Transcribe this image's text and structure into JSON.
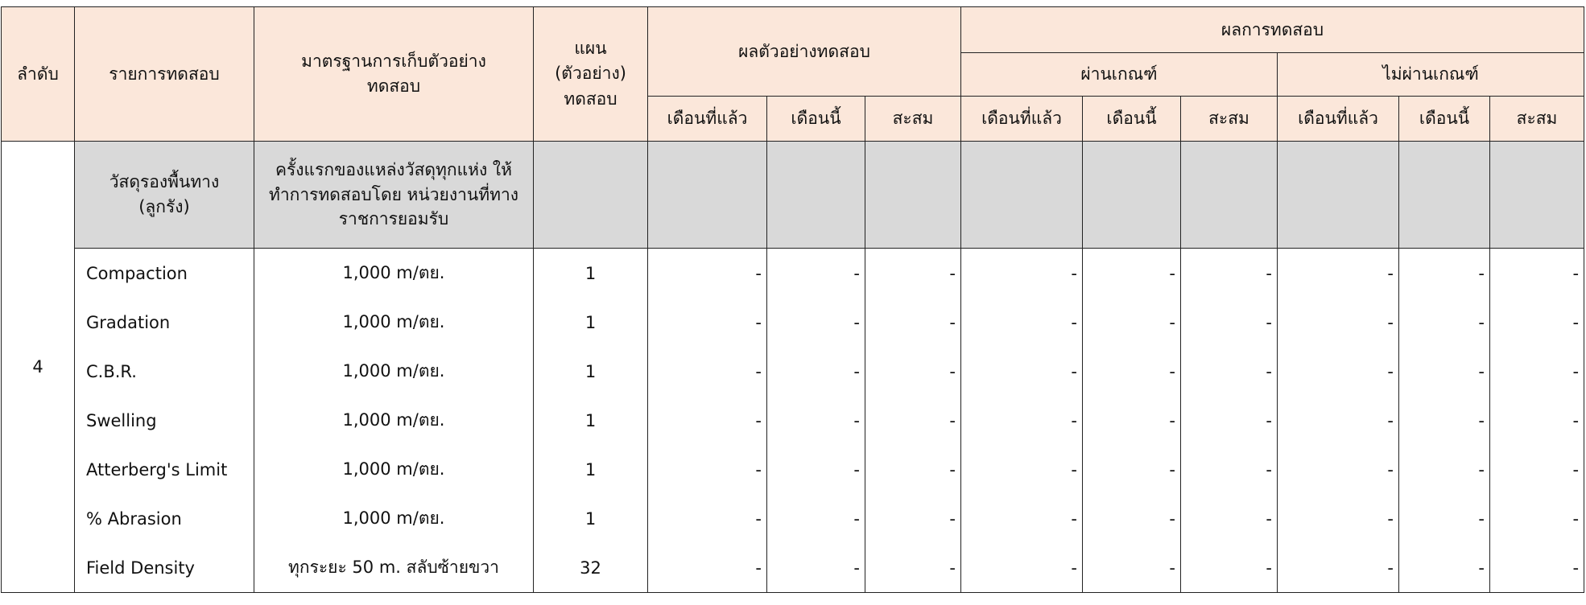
{
  "headers": {
    "seq": "ลำดับ",
    "test_item": "รายการทดสอบ",
    "standard": "มาตรฐานการเก็บตัวอย่างทดสอบ",
    "plan": "แผน (ตัวอย่าง) ทดสอบ",
    "sample_result": "ผลตัวอย่างทดสอบ",
    "test_result": "ผลการทดสอบ",
    "pass": "ผ่านเกณฑ์",
    "fail": "ไม่ผ่านเกณฑ์",
    "last_month": "เดือนที่แล้ว",
    "this_month": "เดือนนี้",
    "cumulative": "สะสม"
  },
  "group": {
    "seq": "4",
    "name": "วัสดุรองพื้นทาง (ลูกรัง)",
    "standard": "ครั้งแรกของแหล่งวัสดุทุกแห่ง ให้ทำการทดสอบโดย หน่วยงานที่ทางราชการยอมรับ"
  },
  "rows": [
    {
      "item": "Compaction",
      "standard": "1,000 m/ตย.",
      "plan": "1",
      "values": [
        "-",
        "-",
        "-",
        "-",
        "-",
        "-",
        "-",
        "-",
        "-"
      ]
    },
    {
      "item": "Gradation",
      "standard": "1,000 m/ตย.",
      "plan": "1",
      "values": [
        "-",
        "-",
        "-",
        "-",
        "-",
        "-",
        "-",
        "-",
        "-"
      ]
    },
    {
      "item": "C.B.R.",
      "standard": "1,000 m/ตย.",
      "plan": "1",
      "values": [
        "-",
        "-",
        "-",
        "-",
        "-",
        "-",
        "-",
        "-",
        "-"
      ]
    },
    {
      "item": "Swelling",
      "standard": "1,000 m/ตย.",
      "plan": "1",
      "values": [
        "-",
        "-",
        "-",
        "-",
        "-",
        "-",
        "-",
        "-",
        "-"
      ]
    },
    {
      "item": "Atterberg's Limit",
      "standard": "1,000 m/ตย.",
      "plan": "1",
      "values": [
        "-",
        "-",
        "-",
        "-",
        "-",
        "-",
        "-",
        "-",
        "-"
      ]
    },
    {
      "item": "% Abrasion",
      "standard": "1,000 m/ตย.",
      "plan": "1",
      "values": [
        "-",
        "-",
        "-",
        "-",
        "-",
        "-",
        "-",
        "-",
        "-"
      ]
    },
    {
      "item": "Field Density",
      "standard": "ทุกระยะ 50 m. สลับซ้ายขวา",
      "plan": "32",
      "values": [
        "-",
        "-",
        "-",
        "-",
        "-",
        "-",
        "-",
        "-",
        "-"
      ]
    }
  ],
  "colors": {
    "header_bg": "#fbe7da",
    "group_bg": "#d9d9d9"
  }
}
